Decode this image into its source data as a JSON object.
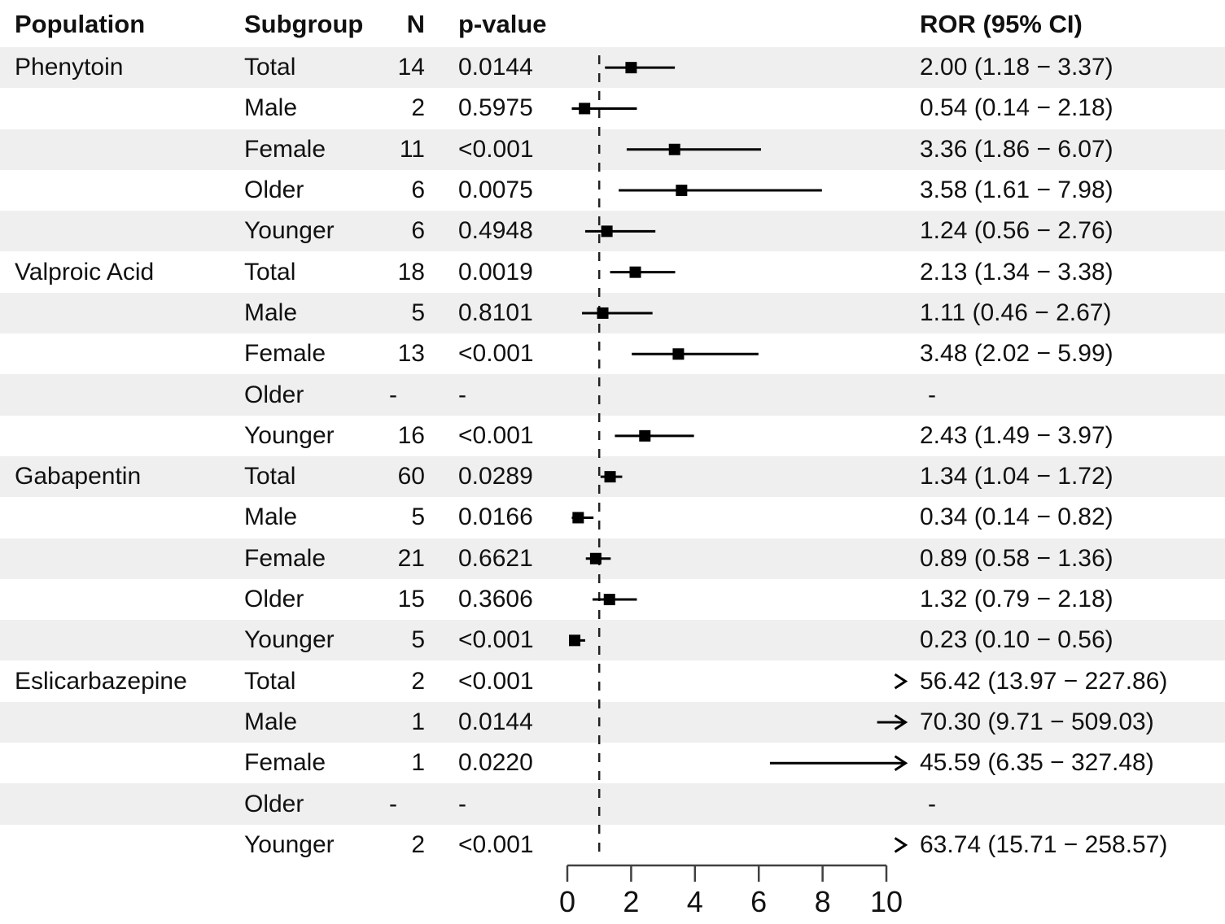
{
  "header": {
    "population": "Population",
    "subgroup": "Subgroup",
    "n": "N",
    "p_value": "p-value",
    "ror": "ROR (95% CI)"
  },
  "colors": {
    "stripe": "#efefef",
    "text": "#111111",
    "marker": "#000000",
    "axis": "#404040",
    "reference_line": "#222222"
  },
  "chart_data": {
    "type": "forest",
    "title": "",
    "xlabel": "",
    "x_axis": {
      "range": [
        0,
        10
      ],
      "ticks": [
        0,
        2,
        4,
        6,
        8,
        10
      ],
      "reference_line": 1
    },
    "legend": null,
    "rows": [
      {
        "population": "Phenytoin",
        "subgroup": "Total",
        "n": "14",
        "p": "0.0144",
        "ror_label": "2.00 (1.18 − 3.37)",
        "est": 2.0,
        "lo": 1.18,
        "hi": 3.37
      },
      {
        "population": "",
        "subgroup": "Male",
        "n": "2",
        "p": "0.5975",
        "ror_label": "0.54 (0.14 − 2.18)",
        "est": 0.54,
        "lo": 0.14,
        "hi": 2.18
      },
      {
        "population": "",
        "subgroup": "Female",
        "n": "11",
        "p": "<0.001",
        "ror_label": "3.36 (1.86 − 6.07)",
        "est": 3.36,
        "lo": 1.86,
        "hi": 6.07
      },
      {
        "population": "",
        "subgroup": "Older",
        "n": "6",
        "p": "0.0075",
        "ror_label": "3.58 (1.61 − 7.98)",
        "est": 3.58,
        "lo": 1.61,
        "hi": 7.98
      },
      {
        "population": "",
        "subgroup": "Younger",
        "n": "6",
        "p": "0.4948",
        "ror_label": "1.24 (0.56 − 2.76)",
        "est": 1.24,
        "lo": 0.56,
        "hi": 2.76
      },
      {
        "population": "Valproic Acid",
        "subgroup": "Total",
        "n": "18",
        "p": "0.0019",
        "ror_label": "2.13 (1.34 − 3.38)",
        "est": 2.13,
        "lo": 1.34,
        "hi": 3.38
      },
      {
        "population": "",
        "subgroup": "Male",
        "n": "5",
        "p": "0.8101",
        "ror_label": "1.11 (0.46 − 2.67)",
        "est": 1.11,
        "lo": 0.46,
        "hi": 2.67
      },
      {
        "population": "",
        "subgroup": "Female",
        "n": "13",
        "p": "<0.001",
        "ror_label": "3.48 (2.02 − 5.99)",
        "est": 3.48,
        "lo": 2.02,
        "hi": 5.99
      },
      {
        "population": "",
        "subgroup": "Older",
        "n": "-",
        "p": "-",
        "ror_label": "-",
        "est": null,
        "lo": null,
        "hi": null
      },
      {
        "population": "",
        "subgroup": "Younger",
        "n": "16",
        "p": "<0.001",
        "ror_label": "2.43 (1.49 − 3.97)",
        "est": 2.43,
        "lo": 1.49,
        "hi": 3.97
      },
      {
        "population": "Gabapentin",
        "subgroup": "Total",
        "n": "60",
        "p": "0.0289",
        "ror_label": "1.34 (1.04 − 1.72)",
        "est": 1.34,
        "lo": 1.04,
        "hi": 1.72
      },
      {
        "population": "",
        "subgroup": "Male",
        "n": "5",
        "p": "0.0166",
        "ror_label": "0.34 (0.14 − 0.82)",
        "est": 0.34,
        "lo": 0.14,
        "hi": 0.82
      },
      {
        "population": "",
        "subgroup": "Female",
        "n": "21",
        "p": "0.6621",
        "ror_label": "0.89 (0.58 − 1.36)",
        "est": 0.89,
        "lo": 0.58,
        "hi": 1.36
      },
      {
        "population": "",
        "subgroup": "Older",
        "n": "15",
        "p": "0.3606",
        "ror_label": "1.32 (0.79 − 2.18)",
        "est": 1.32,
        "lo": 0.79,
        "hi": 2.18
      },
      {
        "population": "",
        "subgroup": "Younger",
        "n": "5",
        "p": "<0.001",
        "ror_label": "0.23 (0.10 − 0.56)",
        "est": 0.23,
        "lo": 0.1,
        "hi": 0.56
      },
      {
        "population": "Eslicarbazepine",
        "subgroup": "Total",
        "n": "2",
        "p": "<0.001",
        "ror_label": "56.42 (13.97 − 227.86)",
        "est": 56.42,
        "lo": 13.97,
        "hi": 227.86
      },
      {
        "population": "",
        "subgroup": "Male",
        "n": "1",
        "p": "0.0144",
        "ror_label": "70.30 (9.71 − 509.03)",
        "est": 70.3,
        "lo": 9.71,
        "hi": 509.03
      },
      {
        "population": "",
        "subgroup": "Female",
        "n": "1",
        "p": "0.0220",
        "ror_label": "45.59 (6.35 − 327.48)",
        "est": 45.59,
        "lo": 6.35,
        "hi": 327.48
      },
      {
        "population": "",
        "subgroup": "Older",
        "n": "-",
        "p": "-",
        "ror_label": "-",
        "est": null,
        "lo": null,
        "hi": null
      },
      {
        "population": "",
        "subgroup": "Younger",
        "n": "2",
        "p": "<0.001",
        "ror_label": "63.74 (15.71 − 258.57)",
        "est": 63.74,
        "lo": 15.71,
        "hi": 258.57
      }
    ]
  }
}
